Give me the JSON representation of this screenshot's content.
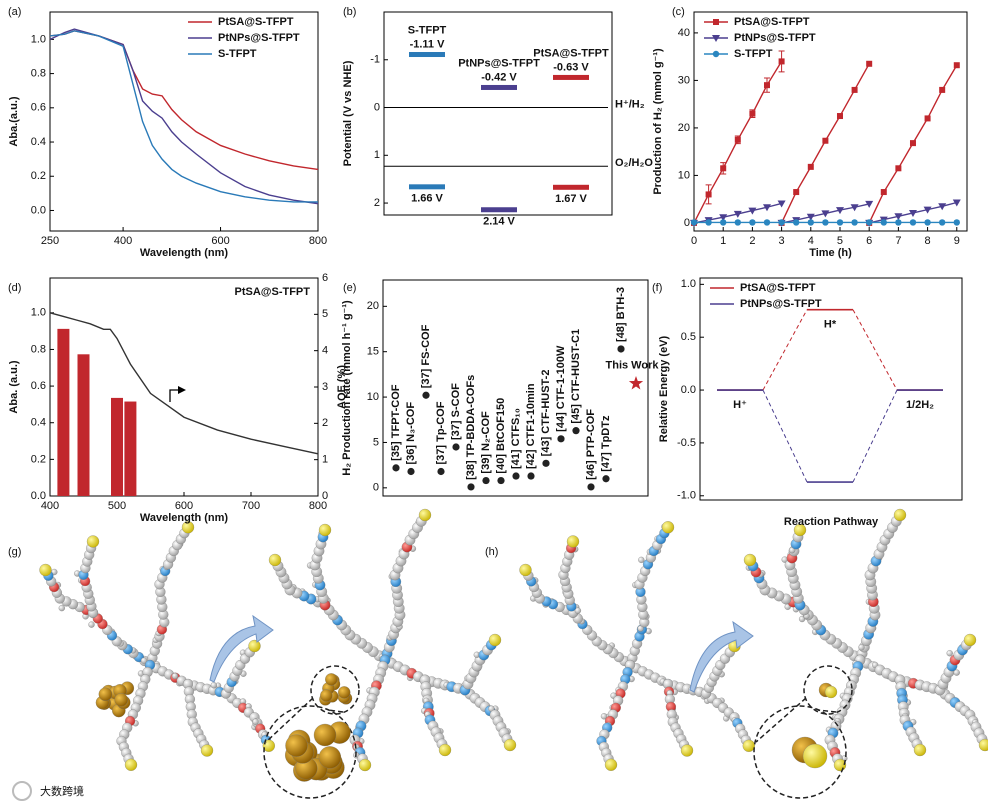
{
  "chart_data": [
    {
      "label": "(a)",
      "type": "line",
      "xlabel": "Wavelength (nm)",
      "ylabel": "Aba.(a.u.)",
      "xlim": [
        250,
        800
      ],
      "ylim": [
        -0.12,
        1.16
      ],
      "xticks": [
        250,
        400,
        600,
        800
      ],
      "yticks": [
        {
          "value": 0,
          "label": "0.0"
        },
        0.2,
        0.4,
        0.6,
        0.8,
        {
          "value": 1,
          "label": "1.0"
        }
      ],
      "legend": "upper right",
      "x": [
        250,
        280,
        300,
        350,
        400,
        420,
        440,
        460,
        480,
        500,
        520,
        550,
        600,
        650,
        700,
        750,
        800
      ],
      "series": [
        {
          "name": "PtSA@S-TFPT",
          "color": "#c1272d",
          "values": [
            1.02,
            1.03,
            1.05,
            1.02,
            0.97,
            0.82,
            0.71,
            0.68,
            0.67,
            0.59,
            0.53,
            0.46,
            0.38,
            0.33,
            0.29,
            0.26,
            0.24
          ]
        },
        {
          "name": "PtNPs@S-TFPT",
          "color": "#4b3f8f",
          "values": [
            1.0,
            1.04,
            1.06,
            1.02,
            0.97,
            0.82,
            0.64,
            0.58,
            0.54,
            0.46,
            0.4,
            0.33,
            0.22,
            0.14,
            0.09,
            0.06,
            0.04
          ]
        },
        {
          "name": "S-TFPT",
          "color": "#2a7ab8",
          "values": [
            1.02,
            1.03,
            1.05,
            1.02,
            0.96,
            0.74,
            0.52,
            0.38,
            0.3,
            0.24,
            0.2,
            0.16,
            0.11,
            0.08,
            0.06,
            0.05,
            0.05
          ]
        }
      ]
    },
    {
      "label": "(b)",
      "type": "energy-levels",
      "ylabel": "Potential (V vs NHE)",
      "ylim": [
        2.25,
        -2
      ],
      "yticks": [
        -1,
        0,
        1,
        2
      ],
      "series": [
        {
          "name": "S-TFPT",
          "color": "#2a7ab8",
          "values": [
            -1.11,
            1.66
          ],
          "value_labels": [
            "-1.11 V",
            "1.66 V"
          ]
        },
        {
          "name": "PtNPs@S-TFPT",
          "color": "#4b3f8f",
          "values": [
            -0.42,
            2.14
          ],
          "value_labels": [
            "-0.42 V",
            "2.14 V"
          ]
        },
        {
          "name": "PtSA@S-TFPT",
          "color": "#c1272d",
          "values": [
            -0.63,
            1.67
          ],
          "value_labels": [
            "-0.63 V",
            "1.67 V"
          ]
        }
      ],
      "reference_lines": [
        {
          "value": 0,
          "label": "H⁺/H₂"
        },
        {
          "value": 1.23,
          "label": "O₂/H₂O"
        }
      ]
    },
    {
      "label": "(c)",
      "type": "line",
      "xlabel": "Time (h)",
      "ylabel": "Production of H₂ (mmol g⁻¹)",
      "xlim": [
        0,
        9.35
      ],
      "ylim": [
        -1.7,
        44.4
      ],
      "xticks": [
        0,
        1,
        2,
        3,
        4,
        5,
        6,
        7,
        8,
        9
      ],
      "yticks": [
        0,
        10,
        20,
        30,
        40
      ],
      "legend": "upper left",
      "series": [
        {
          "name": "PtSA@S-TFPT",
          "color": "#c1272d",
          "marker": "square",
          "x": [
            0,
            0.5,
            1,
            1.5,
            2,
            2.5,
            3,
            3,
            3,
            3.5,
            4,
            4.5,
            5,
            5.5,
            6,
            6,
            6,
            6.5,
            7,
            7.5,
            8,
            8.5,
            9
          ],
          "values": [
            0,
            6,
            11.5,
            17.5,
            23,
            29,
            34,
            null,
            0,
            6.5,
            11.8,
            17.3,
            22.5,
            28,
            33.5,
            null,
            0,
            6.5,
            11.5,
            16.8,
            22,
            28,
            33.2
          ],
          "errors": [
            null,
            2,
            1.2,
            0.8,
            0.8,
            1.5,
            2.2,
            null,
            null,
            null,
            null,
            null,
            null,
            null,
            null,
            null,
            null,
            null,
            null,
            null,
            null,
            null,
            null
          ]
        },
        {
          "name": "PtNPs@S-TFPT",
          "color": "#4b3f8f",
          "marker": "triangle",
          "x": [
            0,
            0.5,
            1,
            1.5,
            2,
            2.5,
            3,
            3,
            3,
            3.5,
            4,
            4.5,
            5,
            5.5,
            6,
            6,
            6,
            6.5,
            7,
            7.5,
            8,
            8.5,
            9
          ],
          "values": [
            0,
            0.6,
            1.2,
            1.9,
            2.6,
            3.3,
            4.1,
            null,
            0,
            0.6,
            1.3,
            2,
            2.7,
            3.3,
            4,
            null,
            0,
            0.7,
            1.4,
            2.1,
            2.8,
            3.5,
            4.3
          ]
        },
        {
          "name": "S-TFPT",
          "color": "#2a86c0",
          "marker": "circle",
          "x": [
            0,
            0.5,
            1,
            1.5,
            2,
            2.5,
            3,
            3.5,
            4,
            4.5,
            5,
            5.5,
            6,
            6.5,
            7,
            7.5,
            8,
            8.5,
            9
          ],
          "values": [
            0.1,
            0.1,
            0.1,
            0.1,
            0.1,
            0.1,
            0.1,
            0.1,
            0.1,
            0.1,
            0.1,
            0.1,
            0.1,
            0.1,
            0.1,
            0.1,
            0.1,
            0.1,
            0.1
          ]
        }
      ]
    },
    {
      "label": "(d)",
      "type": "line-bar",
      "title": "PtSA@S-TFPT",
      "xlabel": "Wavelength (nm)",
      "ylabel": "Aba. (a.u.)",
      "y2label": "AQE (%)",
      "xlim": [
        400,
        800
      ],
      "ylim": [
        0,
        1.19
      ],
      "y2lim": [
        0,
        6
      ],
      "xticks": [
        400,
        500,
        600,
        700,
        800
      ],
      "yticks": [
        {
          "value": 0,
          "label": "0.0"
        },
        0.2,
        0.4,
        0.6,
        0.8,
        {
          "value": 1,
          "label": "1.0"
        }
      ],
      "y2ticks": [
        0,
        1,
        2,
        3,
        4,
        5,
        6
      ],
      "series": [
        {
          "type": "line",
          "color": "#333333",
          "x": [
            400,
            420,
            440,
            460,
            480,
            490,
            500,
            520,
            550,
            600,
            650,
            700,
            750,
            800
          ],
          "values": [
            1.0,
            0.98,
            0.96,
            0.94,
            0.91,
            0.91,
            0.86,
            0.72,
            0.56,
            0.43,
            0.36,
            0.31,
            0.27,
            0.23
          ]
        },
        {
          "type": "bar",
          "axis": "y2",
          "color": "#c1272d",
          "x": [
            420,
            450,
            500,
            520
          ],
          "values": [
            4.6,
            3.9,
            2.7,
            2.6
          ]
        }
      ]
    },
    {
      "label": "(e)",
      "type": "scatter",
      "ylabel": "H₂ Production rate (mmol h⁻¹ g⁻¹)",
      "ylim": [
        -0.9,
        22.9
      ],
      "yticks": [
        0,
        5,
        10,
        15,
        20
      ],
      "color": "#222222",
      "highlight_color": "#c1272d",
      "highlight_index": 16,
      "categories": [
        "[35] TFPT-COF",
        "[36] N₃-COF",
        "[37] FS-COF",
        "[37] Tp-COF",
        "[37] S-COF",
        "[38] TP-BDDA-COFs",
        "[39] N₂-COF",
        "[40] BtCOF150",
        "[41] CTFS₁₀",
        "[42] CTF1-10min",
        "[43] CTF-HUST-2",
        "[44] CTF-1-100W",
        "[45] CTF-HUST-C1",
        "[46] PTP-COF",
        "[47] TpDTz",
        "[48] BTH-3",
        "This Work"
      ],
      "values": [
        2.2,
        1.8,
        10.2,
        1.8,
        4.5,
        0.1,
        0.8,
        0.8,
        1.3,
        1.3,
        2.7,
        5.4,
        6.3,
        0.1,
        1.0,
        15.3,
        11.5
      ]
    },
    {
      "label": "(f)",
      "type": "energy-profile",
      "xlabel": "Reaction Pathway",
      "ylabel": "Relative Energy (eV)",
      "ylim": [
        -1.04,
        1.06
      ],
      "yticks": [
        {
          "value": -1,
          "label": "-1.0"
        },
        -0.5,
        {
          "value": 0,
          "label": "0.0"
        },
        0.5,
        {
          "value": 1,
          "label": "1.0"
        }
      ],
      "legend": "upper left",
      "categories": [
        "H⁺",
        "H*",
        "1/2H₂"
      ],
      "series": [
        {
          "name": "PtSA@S-TFPT",
          "color": "#c1272d",
          "values": [
            0,
            0.76,
            0
          ]
        },
        {
          "name": "PtNPs@S-TFPT",
          "color": "#4b3f8f",
          "values": [
            0,
            -0.87,
            0
          ]
        }
      ]
    }
  ],
  "figures": [
    {
      "label": "(g)"
    },
    {
      "label": "(h)"
    }
  ],
  "watermark": "大数跨境"
}
